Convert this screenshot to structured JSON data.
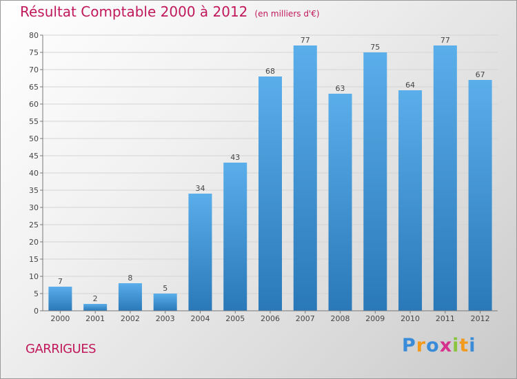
{
  "header": {
    "title": "Résultat Comptable 2000 à 2012",
    "subtitle": "(en milliers d'€)"
  },
  "commune": "GARRIGUES",
  "logo": {
    "text": "Proxiti",
    "letters": [
      {
        "ch": "P",
        "color": "#3a8bd8"
      },
      {
        "ch": "r",
        "color": "#f29a1d"
      },
      {
        "ch": "o",
        "color": "#3a8bd8"
      },
      {
        "ch": "x",
        "color": "#d6318e"
      },
      {
        "ch": "i",
        "color": "#8ac43f"
      },
      {
        "ch": "t",
        "color": "#f29a1d"
      },
      {
        "ch": "i",
        "color": "#3a8bd8"
      }
    ]
  },
  "colors": {
    "title": "#c0185a",
    "bar_light": "#5aaeea",
    "bar_dark": "#2a78b8",
    "grid": "#d4d4d4"
  },
  "chart_data": {
    "type": "bar",
    "title": "Résultat Comptable 2000 à 2012",
    "subtitle": "(en milliers d'€)",
    "xlabel": "",
    "ylabel": "",
    "categories": [
      "2000",
      "2001",
      "2002",
      "2003",
      "2004",
      "2005",
      "2006",
      "2007",
      "2008",
      "2009",
      "2010",
      "2011",
      "2012"
    ],
    "values": [
      7,
      2,
      8,
      5,
      34,
      43,
      68,
      77,
      63,
      75,
      64,
      77,
      67
    ],
    "ylim": [
      0,
      80
    ],
    "yticks": [
      0,
      5,
      10,
      15,
      20,
      25,
      30,
      35,
      40,
      45,
      50,
      55,
      60,
      65,
      70,
      75,
      80
    ],
    "grid": true,
    "legend": "none"
  }
}
